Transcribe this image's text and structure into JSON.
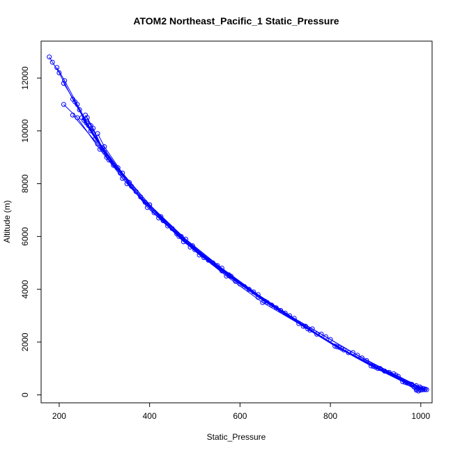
{
  "chart_data": {
    "type": "scatter",
    "title": "ATOM2 Northeast_Pacific_1 Static_Pressure",
    "xlabel": "Static_Pressure",
    "ylabel": "Altitude (m)",
    "xlim": [
      160,
      1025
    ],
    "ylim": [
      -300,
      13400
    ],
    "x_ticks": [
      200,
      400,
      600,
      800,
      1000
    ],
    "y_ticks": [
      0,
      2000,
      4000,
      6000,
      8000,
      10000,
      12000
    ],
    "grid": false,
    "legend": "none",
    "marker": "open-circle",
    "connect_points": true,
    "color": "#0000ff",
    "series": [
      {
        "x": [
          1013,
          1005,
          950,
          880,
          800,
          720,
          640,
          560,
          480,
          400,
          330,
          270,
          230,
          200,
          185,
          178
        ],
        "y": [
          200,
          250,
          700,
          1300,
          2100,
          2900,
          3800,
          4800,
          5900,
          7200,
          8600,
          10000,
          11200,
          12200,
          12600,
          12800
        ]
      },
      {
        "x": [
          1008,
          998,
          940,
          860,
          780,
          700,
          620,
          540,
          460,
          390,
          320,
          265,
          240,
          212,
          195
        ],
        "y": [
          200,
          300,
          800,
          1500,
          2300,
          3100,
          4000,
          5000,
          6100,
          7300,
          8700,
          10200,
          11000,
          11900,
          12400
        ]
      },
      {
        "x": [
          1000,
          990,
          930,
          850,
          760,
          680,
          600,
          520,
          450,
          380,
          310,
          260,
          235,
          210
        ],
        "y": [
          180,
          350,
          850,
          1600,
          2500,
          3300,
          4200,
          5200,
          6300,
          7500,
          8900,
          10300,
          11100,
          11800
        ]
      },
      {
        "x": [
          995,
          980,
          910,
          830,
          750,
          660,
          580,
          500,
          430,
          360,
          300,
          255,
          245
        ],
        "y": [
          150,
          400,
          1000,
          1700,
          2500,
          3500,
          4500,
          5500,
          6600,
          7900,
          9200,
          10400,
          10800
        ]
      },
      {
        "x": [
          992,
          970,
          900,
          820,
          740,
          650,
          570,
          490,
          420,
          350,
          290,
          240,
          210
        ],
        "y": [
          200,
          450,
          1050,
          1800,
          2600,
          3500,
          4500,
          5600,
          6700,
          8000,
          9300,
          10500,
          11000
        ]
      },
      {
        "x": [
          990,
          960,
          890,
          810,
          730,
          640,
          560,
          475,
          410,
          340,
          285,
          230
        ],
        "y": [
          180,
          500,
          1100,
          1850,
          2700,
          3700,
          4700,
          5800,
          6900,
          8200,
          9500,
          10600
        ]
      },
      {
        "x": [
          1005,
          985,
          920,
          840,
          770,
          690,
          610,
          530,
          465,
          395,
          335,
          280,
          250
        ],
        "y": [
          200,
          300,
          900,
          1600,
          2300,
          3200,
          4100,
          5100,
          6000,
          7100,
          8400,
          9700,
          10500
        ]
      },
      {
        "x": [
          1002,
          975,
          905,
          825,
          755,
          670,
          590,
          510,
          440,
          370,
          305,
          275,
          262
        ],
        "y": [
          220,
          420,
          1000,
          1750,
          2450,
          3400,
          4300,
          5300,
          6400,
          7700,
          9000,
          10100,
          10500
        ]
      },
      {
        "x": [
          996,
          965,
          895,
          815,
          745,
          655,
          575,
          495,
          425,
          355,
          295,
          270,
          258
        ],
        "y": [
          210,
          480,
          1080,
          1820,
          2600,
          3550,
          4550,
          5650,
          6750,
          8050,
          9350,
          10200,
          10600
        ]
      },
      {
        "x": [
          1010,
          1000,
          945,
          870,
          790,
          710,
          630,
          550,
          470,
          400,
          340,
          300,
          285
        ],
        "y": [
          220,
          260,
          750,
          1400,
          2200,
          3000,
          3900,
          4900,
          6000,
          7200,
          8400,
          9400,
          9900
        ]
      }
    ]
  }
}
